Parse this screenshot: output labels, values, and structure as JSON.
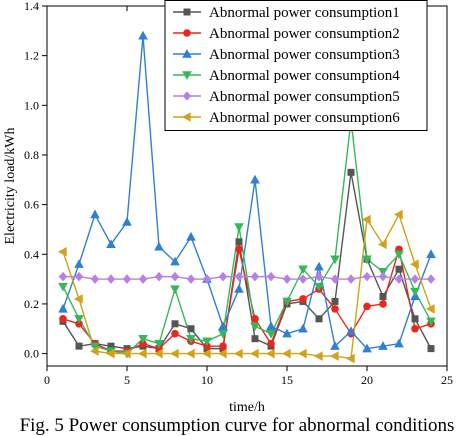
{
  "chart_data": {
    "type": "line",
    "caption": "Fig. 5 Power consumption curve for abnormal conditions",
    "xlabel": "time/h",
    "ylabel": "Electricity load/kWh",
    "xlim": [
      0,
      25
    ],
    "ylim": [
      -0.05,
      1.4
    ],
    "xticks": [
      0,
      5,
      10,
      15,
      20,
      25
    ],
    "yticks": [
      0.0,
      0.2,
      0.4,
      0.6,
      0.8,
      1.0,
      1.2,
      1.4
    ],
    "grid": false,
    "legend_position": "top-right",
    "x": [
      1,
      2,
      3,
      4,
      5,
      6,
      7,
      8,
      9,
      10,
      11,
      12,
      13,
      14,
      15,
      16,
      17,
      18,
      19,
      20,
      21,
      22,
      23,
      24
    ],
    "series": [
      {
        "name": "Abnormal power consumption1",
        "color": "#555555",
        "marker": "square",
        "values": [
          0.13,
          0.03,
          0.04,
          0.03,
          0.02,
          0.03,
          0.02,
          0.12,
          0.1,
          0.02,
          0.02,
          0.45,
          0.06,
          0.03,
          0.2,
          0.21,
          0.14,
          0.21,
          0.73,
          0.38,
          0.23,
          0.34,
          0.14,
          0.02
        ]
      },
      {
        "name": "Abnormal power consumption2",
        "color": "#e8271f",
        "marker": "circle",
        "values": [
          0.14,
          0.12,
          0.04,
          0.01,
          0.01,
          0.04,
          0.02,
          0.08,
          0.05,
          0.03,
          0.03,
          0.42,
          0.14,
          0.04,
          0.21,
          0.22,
          0.26,
          0.18,
          0.08,
          0.19,
          0.2,
          0.42,
          0.1,
          0.12
        ]
      },
      {
        "name": "Abnormal power consumption3",
        "color": "#2f7fd6",
        "marker": "triangle-up",
        "values": [
          0.18,
          0.36,
          0.56,
          0.44,
          0.53,
          1.28,
          0.43,
          0.37,
          0.47,
          0.3,
          0.11,
          0.26,
          0.7,
          0.11,
          0.08,
          0.1,
          0.35,
          0.03,
          0.09,
          0.02,
          0.03,
          0.04,
          0.23,
          0.4
        ]
      },
      {
        "name": "Abnormal power consumption4",
        "color": "#36b85a",
        "marker": "triangle-down",
        "values": [
          0.27,
          0.14,
          0.03,
          0.01,
          0.0,
          0.06,
          0.04,
          0.26,
          0.06,
          0.05,
          0.08,
          0.51,
          0.11,
          0.08,
          0.21,
          0.34,
          0.27,
          0.38,
          0.94,
          0.38,
          0.33,
          0.4,
          0.25,
          0.13
        ]
      },
      {
        "name": "Abnormal power consumption5",
        "color": "#b67fea",
        "marker": "diamond",
        "values": [
          0.31,
          0.31,
          0.3,
          0.3,
          0.3,
          0.3,
          0.31,
          0.31,
          0.3,
          0.3,
          0.31,
          0.31,
          0.31,
          0.31,
          0.3,
          0.3,
          0.31,
          0.3,
          0.3,
          0.31,
          0.31,
          0.3,
          0.3,
          0.3
        ]
      },
      {
        "name": "Abnormal power consumption6",
        "color": "#d1a21a",
        "marker": "triangle-left",
        "values": [
          0.41,
          0.22,
          0.01,
          0.0,
          0.0,
          0.0,
          0.0,
          0.0,
          0.0,
          0.0,
          0.0,
          0.0,
          0.0,
          0.0,
          0.0,
          0.0,
          -0.01,
          -0.01,
          -0.02,
          0.54,
          0.44,
          0.56,
          0.36,
          0.18
        ]
      }
    ]
  }
}
